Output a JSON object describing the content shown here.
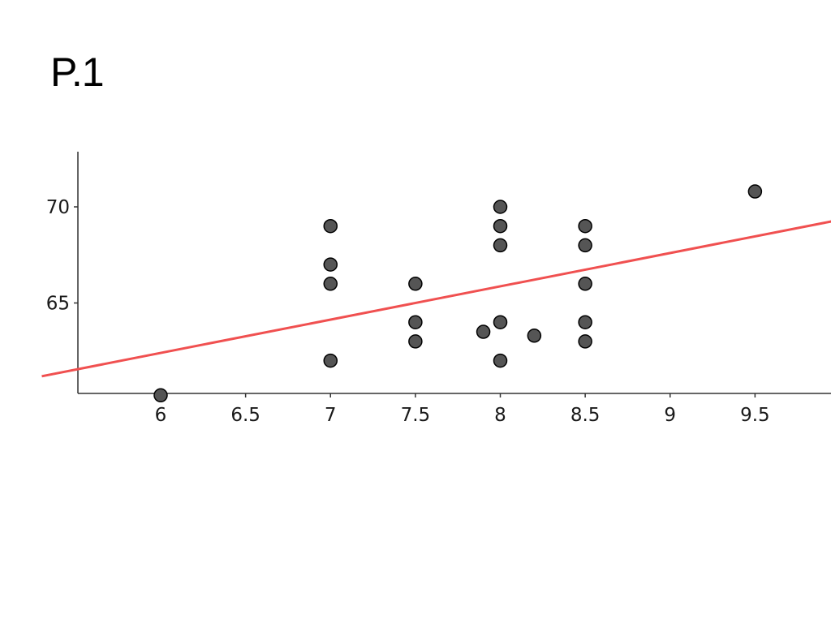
{
  "slide": {
    "title": "P.1"
  },
  "chart_data": {
    "type": "scatter",
    "title": "",
    "xlabel": "",
    "ylabel": "",
    "xlim": [
      5.5,
      9.95
    ],
    "ylim": [
      60.5,
      72.8
    ],
    "x_ticks": [
      6,
      6.5,
      7,
      7.5,
      8,
      8.5,
      9,
      9.5
    ],
    "x_tick_labels": [
      "6",
      "6.5",
      "7",
      "7.5",
      "8",
      "8.5",
      "9",
      "9.5"
    ],
    "y_ticks": [
      65,
      70
    ],
    "y_tick_labels": [
      "65",
      "70"
    ],
    "grid": false,
    "series": [
      {
        "points": [
          {
            "x": 6.0,
            "y": 60.2
          },
          {
            "x": 7.0,
            "y": 69.0
          },
          {
            "x": 7.0,
            "y": 67.0
          },
          {
            "x": 7.0,
            "y": 66.0
          },
          {
            "x": 7.0,
            "y": 62.0
          },
          {
            "x": 7.5,
            "y": 66.0
          },
          {
            "x": 7.5,
            "y": 64.0
          },
          {
            "x": 7.5,
            "y": 63.0
          },
          {
            "x": 7.9,
            "y": 63.5
          },
          {
            "x": 8.0,
            "y": 70.0
          },
          {
            "x": 8.0,
            "y": 69.0
          },
          {
            "x": 8.0,
            "y": 68.0
          },
          {
            "x": 8.0,
            "y": 64.0
          },
          {
            "x": 8.0,
            "y": 62.0
          },
          {
            "x": 8.2,
            "y": 63.3
          },
          {
            "x": 8.5,
            "y": 69.0
          },
          {
            "x": 8.5,
            "y": 68.0
          },
          {
            "x": 8.5,
            "y": 66.0
          },
          {
            "x": 8.5,
            "y": 64.0
          },
          {
            "x": 8.5,
            "y": 63.0
          },
          {
            "x": 9.5,
            "y": 70.8
          }
        ],
        "marker_color": "#555555",
        "marker_edge_color": "#000000"
      }
    ],
    "trend_line": {
      "type": "linear",
      "slope": 1.732,
      "intercept": 52.01,
      "color": "#f05050"
    }
  }
}
